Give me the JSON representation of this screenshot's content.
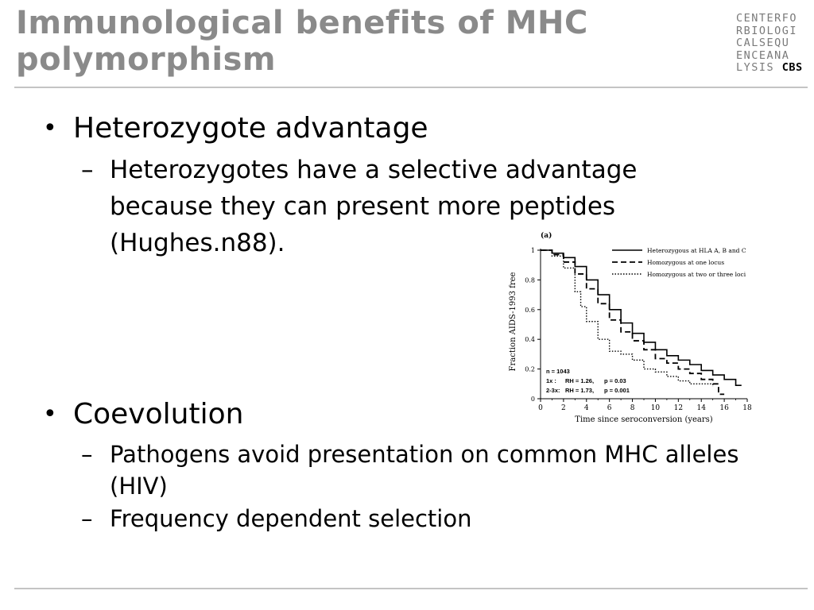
{
  "title": {
    "line1": "Immunological benefits of MHC",
    "line2": "polymorphism"
  },
  "logo": {
    "rows": [
      "CENTERFO",
      "RBIOLOGI",
      "CALSEQU",
      "ENCEANA"
    ],
    "last_prefix": "LYSIS ",
    "last_bold": "CBS"
  },
  "bullets": {
    "b1": {
      "glyph": "•",
      "text": "Heterozygote advantage",
      "sub": {
        "dash": "–",
        "line1": "Heterozygotes have a selective advantage",
        "line2": "because they can present more peptides",
        "line3": "(Hughes.n88)."
      }
    },
    "b2": {
      "glyph": "•",
      "text": "Coevolution",
      "sub1": {
        "dash": "–",
        "line1": "Pathogens avoid presentation on common MHC alleles",
        "line2": "(HIV)"
      },
      "sub2": {
        "dash": "–",
        "line1": "Frequency dependent selection"
      }
    }
  },
  "chart_data": {
    "type": "line",
    "panel_label": "(a)",
    "title": "",
    "xlabel": "Time since seroconversion (years)",
    "ylabel": "Fraction AIDS-1993 free",
    "xlim": [
      0,
      18
    ],
    "ylim": [
      0,
      1
    ],
    "x_ticks": [
      "0",
      "2",
      "4",
      "6",
      "8",
      "10",
      "12",
      "14",
      "16",
      "18"
    ],
    "y_ticks": [
      "0",
      "0.2",
      "0.4",
      "0.6",
      "0.8",
      "1"
    ],
    "legend_position": "top-right",
    "series": [
      {
        "name": "Heterozygous at HLA A, B and C",
        "style": "solid",
        "points": [
          [
            0,
            1
          ],
          [
            1,
            0.98
          ],
          [
            2,
            0.95
          ],
          [
            3,
            0.89
          ],
          [
            4,
            0.8
          ],
          [
            5,
            0.7
          ],
          [
            6,
            0.6
          ],
          [
            7,
            0.51
          ],
          [
            8,
            0.44
          ],
          [
            9,
            0.38
          ],
          [
            10,
            0.33
          ],
          [
            11,
            0.29
          ],
          [
            12,
            0.26
          ],
          [
            13,
            0.23
          ],
          [
            14,
            0.19
          ],
          [
            15,
            0.16
          ],
          [
            16,
            0.13
          ],
          [
            17,
            0.09
          ],
          [
            17.5,
            0.09
          ]
        ]
      },
      {
        "name": "Homozygous at one locus",
        "style": "dashed",
        "points": [
          [
            0,
            1
          ],
          [
            1,
            0.97
          ],
          [
            2,
            0.92
          ],
          [
            3,
            0.84
          ],
          [
            4,
            0.74
          ],
          [
            5,
            0.64
          ],
          [
            6,
            0.53
          ],
          [
            7,
            0.45
          ],
          [
            8,
            0.39
          ],
          [
            9,
            0.33
          ],
          [
            10,
            0.27
          ],
          [
            11,
            0.24
          ],
          [
            12,
            0.2
          ],
          [
            13,
            0.17
          ],
          [
            14,
            0.13
          ],
          [
            15,
            0.1
          ],
          [
            15.5,
            0.03
          ],
          [
            16,
            0.03
          ]
        ]
      },
      {
        "name": "Homozygous at two or three loci",
        "style": "dotted",
        "points": [
          [
            0,
            1
          ],
          [
            1,
            0.96
          ],
          [
            2,
            0.88
          ],
          [
            3,
            0.72
          ],
          [
            3.5,
            0.62
          ],
          [
            4,
            0.52
          ],
          [
            5,
            0.4
          ],
          [
            6,
            0.32
          ],
          [
            7,
            0.3
          ],
          [
            8,
            0.26
          ],
          [
            9,
            0.2
          ],
          [
            10,
            0.18
          ],
          [
            11,
            0.15
          ],
          [
            12,
            0.12
          ],
          [
            13,
            0.1
          ],
          [
            14,
            0.1
          ],
          [
            15,
            0.08
          ]
        ]
      }
    ],
    "annotations": {
      "n": "n = 1043",
      "row1_label": "1x :",
      "row1_rh": "RH = 1.26,",
      "row1_p": "p = 0.03",
      "row2_label": "2-3x:",
      "row2_rh": "RH = 1.73,",
      "row2_p": "p = 0.001"
    }
  }
}
